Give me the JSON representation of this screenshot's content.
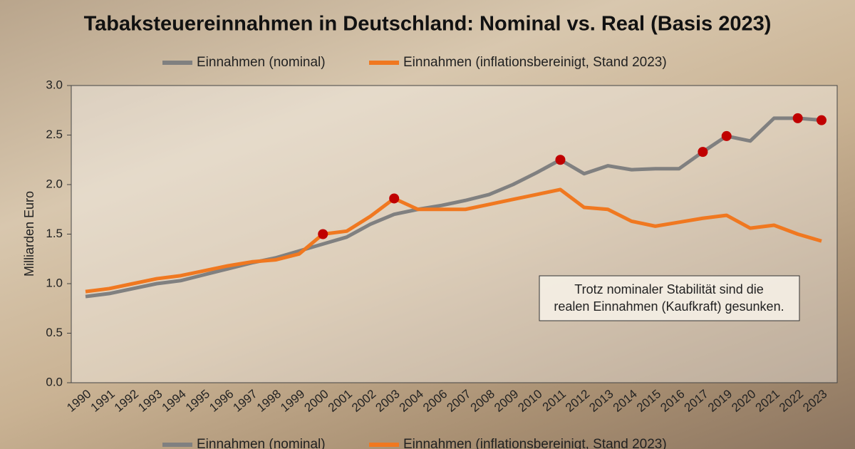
{
  "chart_data": {
    "type": "line",
    "title": "Tabaksteuereinnahmen in Deutschland: Nominal vs. Real (Basis 2023)",
    "y_label": "Milliarden Euro",
    "categories": [
      "1990",
      "1991",
      "1992",
      "1993",
      "1994",
      "1995",
      "1996",
      "1997",
      "1998",
      "1999",
      "2000",
      "2001",
      "2002",
      "2003",
      "2004",
      "2006",
      "2007",
      "2008",
      "2009",
      "2010",
      "2011",
      "2012",
      "2013",
      "2014",
      "2015",
      "2016",
      "2017",
      "2019",
      "2020",
      "2021",
      "2022",
      "2023"
    ],
    "series": [
      {
        "name": "Einnahmen (nominal)",
        "color": "#808080",
        "values": [
          0.87,
          0.9,
          0.95,
          1.0,
          1.03,
          1.09,
          1.15,
          1.21,
          1.26,
          1.33,
          1.4,
          1.47,
          1.6,
          1.7,
          1.75,
          1.79,
          1.84,
          1.9,
          2.0,
          2.12,
          2.25,
          2.11,
          2.19,
          2.15,
          2.16,
          2.16,
          2.33,
          2.49,
          2.44,
          2.67,
          2.67,
          2.65
        ],
        "highlight": [
          "2011",
          "2017",
          "2019",
          "2022",
          "2023"
        ]
      },
      {
        "name": "Einnahmen (inflationsbereinigt, Stand 2023)",
        "color": "#f07820",
        "values": [
          0.92,
          0.95,
          1.0,
          1.05,
          1.08,
          1.13,
          1.18,
          1.22,
          1.24,
          1.3,
          1.5,
          1.53,
          1.68,
          1.86,
          1.75,
          1.75,
          1.75,
          1.8,
          1.85,
          1.9,
          1.95,
          1.77,
          1.75,
          1.63,
          1.58,
          1.62,
          1.66,
          1.69,
          1.56,
          1.59,
          1.5,
          1.43
        ],
        "highlight": [
          "2000",
          "2003"
        ]
      }
    ],
    "highlight_color": "#c00000",
    "ylim": [
      0,
      3
    ],
    "yticks": [
      {
        "value": 0,
        "label": "0.0"
      },
      0.5,
      {
        "value": 1,
        "label": "1.0"
      },
      1.5,
      {
        "value": 2,
        "label": "2.0"
      },
      2.5,
      {
        "value": 3,
        "label": "3.0"
      }
    ],
    "annotation": [
      "Trotz nominaler Stabilität sind die",
      "realen Einnahmen (Kaufkraft) gesunken."
    ]
  }
}
